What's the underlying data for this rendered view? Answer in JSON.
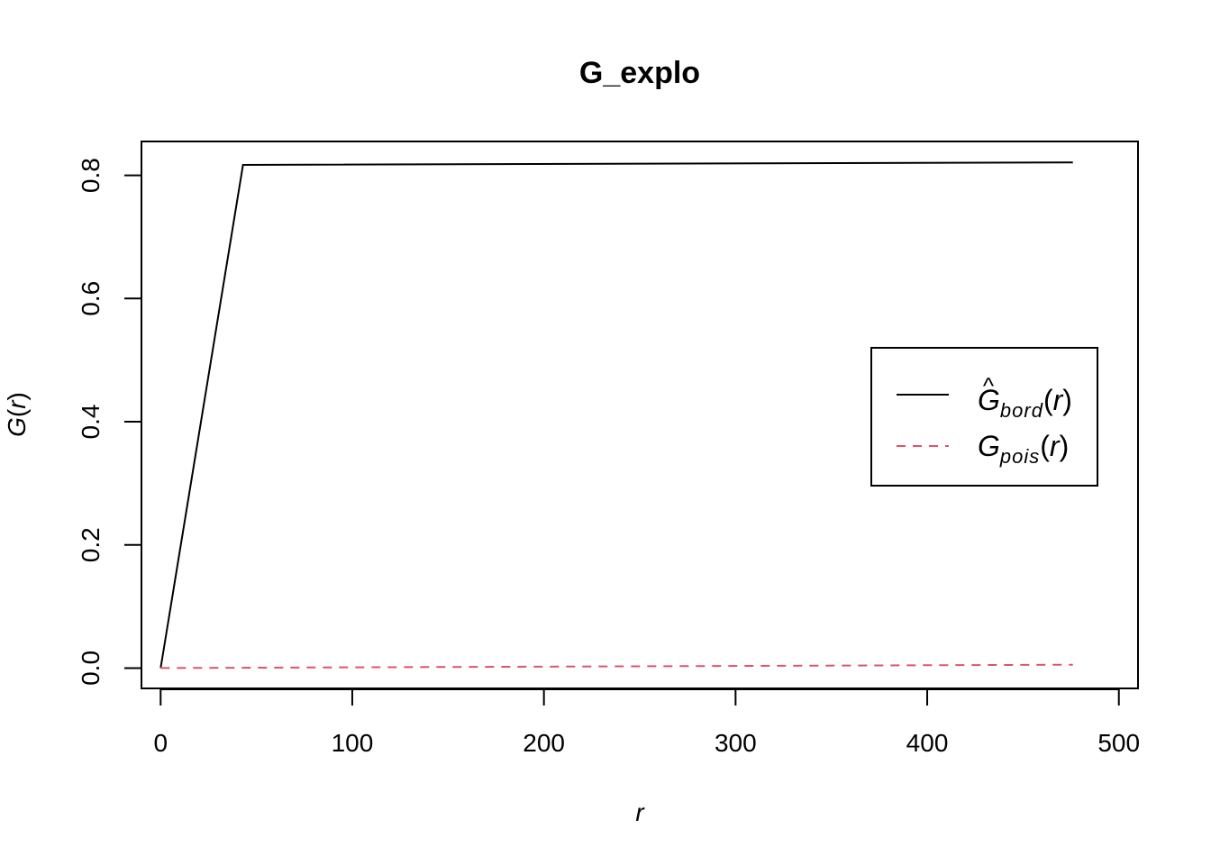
{
  "chart_data": {
    "type": "line",
    "title": "G_explo",
    "xlabel": "r",
    "ylabel_main": "G",
    "ylabel_arg": "r",
    "xlim": [
      -10,
      510
    ],
    "ylim": [
      -0.033,
      0.855
    ],
    "x_ticks": [
      0,
      100,
      200,
      300,
      400,
      500
    ],
    "x_tick_labels": [
      "0",
      "100",
      "200",
      "300",
      "400",
      "500"
    ],
    "y_ticks": [
      0.0,
      0.2,
      0.4,
      0.6,
      0.8
    ],
    "y_tick_labels": [
      "0.0",
      "0.2",
      "0.4",
      "0.6",
      "0.8"
    ],
    "grid": false,
    "legend_position": "right",
    "series": [
      {
        "id": "bord",
        "main": "G",
        "hat": "^",
        "subscript": "bord",
        "arg": "r",
        "color": "#000000",
        "dash": "solid",
        "x": [
          0,
          43,
          476
        ],
        "y": [
          0.0,
          0.817,
          0.821
        ]
      },
      {
        "id": "pois",
        "main": "G",
        "hat": "",
        "subscript": "pois",
        "arg": "r",
        "color": "#DF536B",
        "dash": "dashed",
        "x": [
          0,
          476
        ],
        "y": [
          0.0,
          0.0055
        ]
      }
    ]
  }
}
